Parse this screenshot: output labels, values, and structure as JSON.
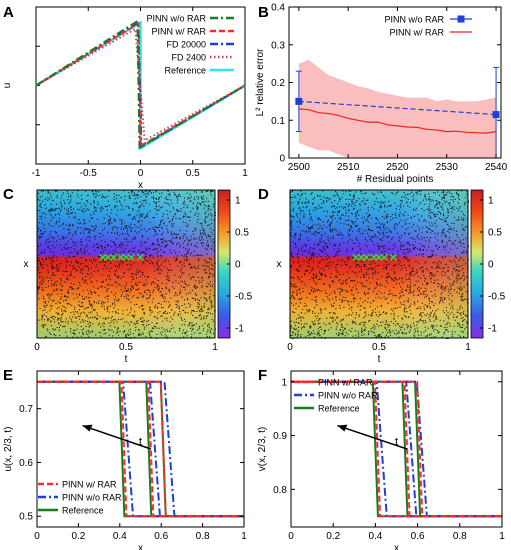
{
  "chart_data": [
    {
      "panel": "A",
      "type": "line",
      "xlabel": "x",
      "ylabel": "u",
      "xlim": [
        -1,
        1
      ],
      "ylim": [
        -1,
        1
      ],
      "xticks": [
        "-1",
        "-0.5",
        "0",
        "0.5",
        "1"
      ],
      "yticks": [],
      "legend_position": "top-right",
      "series": [
        {
          "name": "PINN w/o RAR",
          "color": "#1e7a1e",
          "style": "dashdot",
          "points": [
            [
              -1,
              0
            ],
            [
              -0.03,
              0.82
            ],
            [
              -0.01,
              -0.79
            ],
            [
              1,
              0
            ]
          ]
        },
        {
          "name": "PINN w/ RAR",
          "color": "#ff2a2a",
          "style": "dashed",
          "points": [
            [
              -1,
              0
            ],
            [
              -0.02,
              0.79
            ],
            [
              0.0,
              -0.77
            ],
            [
              1,
              0
            ]
          ]
        },
        {
          "name": "FD 20000",
          "color": "#1f3fd8",
          "style": "dashdot",
          "points": [
            [
              -1,
              0
            ],
            [
              -0.02,
              0.8
            ],
            [
              0.01,
              -0.78
            ],
            [
              1,
              0
            ]
          ]
        },
        {
          "name": "FD 2400",
          "color": "#b04a6a",
          "style": "dotted",
          "points": [
            [
              -1,
              0
            ],
            [
              -0.05,
              0.72
            ],
            [
              0.04,
              -0.7
            ],
            [
              1,
              0
            ]
          ]
        },
        {
          "name": "Reference",
          "color": "#2ee6e6",
          "style": "solid",
          "points": [
            [
              -1,
              0
            ],
            [
              0,
              0.8
            ],
            [
              0,
              -0.8
            ],
            [
              1,
              0
            ]
          ]
        }
      ]
    },
    {
      "panel": "B",
      "type": "line",
      "xlabel": "# Residual points",
      "ylabel": "L² relative error",
      "xlim": [
        2498,
        2541
      ],
      "ylim": [
        0,
        0.4
      ],
      "xticks": [
        "2500",
        "2510",
        "2520",
        "2530",
        "2540"
      ],
      "yticks": [
        "0",
        "0.1",
        "0.2",
        "0.3",
        "0.4"
      ],
      "legend_position": "top-right",
      "series": [
        {
          "name": "PINN w/o RAR",
          "color": "#1f3fd8",
          "style": "dashed-errorbar",
          "x": [
            2500,
            2540
          ],
          "y": [
            0.15,
            0.115
          ],
          "err_low": [
            0.07,
            0.0
          ],
          "err_high": [
            0.23,
            0.24
          ]
        },
        {
          "name": "PINN w/ RAR",
          "color": "#e8281e",
          "style": "solid-band",
          "x": [
            2500,
            2502,
            2504,
            2506,
            2508,
            2510,
            2512,
            2514,
            2516,
            2518,
            2520,
            2522,
            2524,
            2526,
            2528,
            2530,
            2532,
            2534,
            2536,
            2538,
            2540
          ],
          "y": [
            0.13,
            0.128,
            0.12,
            0.118,
            0.113,
            0.105,
            0.1,
            0.095,
            0.095,
            0.088,
            0.085,
            0.082,
            0.081,
            0.076,
            0.074,
            0.07,
            0.071,
            0.068,
            0.067,
            0.066,
            0.07
          ],
          "band_low": [
            0.04,
            0.03,
            0.02,
            0.02,
            0.01,
            0.0,
            0.0,
            0.0,
            0.0,
            0.0,
            0.0,
            0.0,
            0.0,
            0.0,
            0.0,
            0.0,
            0.0,
            0.0,
            0.0,
            0.0,
            0.0
          ],
          "band_high": [
            0.25,
            0.26,
            0.24,
            0.22,
            0.21,
            0.2,
            0.19,
            0.185,
            0.175,
            0.17,
            0.165,
            0.16,
            0.16,
            0.16,
            0.15,
            0.155,
            0.15,
            0.15,
            0.15,
            0.155,
            0.16
          ]
        }
      ]
    },
    {
      "panel": "C",
      "type": "heatmap",
      "xlabel": "t",
      "ylabel": "x",
      "xticks": [
        "0",
        "0.5",
        "1"
      ],
      "colorbar_ticks": [
        "1",
        "0.5",
        "0",
        "-0.5",
        "-1"
      ]
    },
    {
      "panel": "D",
      "type": "heatmap",
      "xlabel": "t",
      "ylabel": "x",
      "xticks": [
        "0",
        "0.5",
        "1"
      ],
      "colorbar_ticks": [
        "1",
        "0.5",
        "0",
        "-0.5",
        "-1"
      ]
    },
    {
      "panel": "E",
      "type": "line",
      "xlabel": "x",
      "ylabel": "u(x, 2/3, t)",
      "xlim": [
        0,
        1
      ],
      "ylim": [
        0.48,
        0.77
      ],
      "xticks": [
        "0",
        "0.2",
        "0.4",
        "0.6",
        "0.8",
        "1"
      ],
      "yticks": [
        "0.5",
        "0.6",
        "0.7"
      ],
      "ytick_values": [
        0.5,
        0.6,
        0.7
      ],
      "legend_position": "bottom-left",
      "arrow_label": "t",
      "series": [
        {
          "name": "PINN w/ RAR",
          "color": "#ff2a2a",
          "style": "dashed",
          "jumps": [
            0.42,
            0.55,
            0.61
          ]
        },
        {
          "name": "PINN w/o RAR",
          "color": "#1f3fd8",
          "style": "dashdot",
          "jumps": [
            0.44,
            0.57,
            0.64
          ]
        },
        {
          "name": "Reference",
          "color": "#1e7a1e",
          "style": "solid",
          "jumps": [
            0.41,
            0.54,
            0.61
          ]
        }
      ],
      "high": 0.75,
      "low": 0.5
    },
    {
      "panel": "F",
      "type": "line",
      "xlabel": "x",
      "ylabel": "v(x, 2/3, t)",
      "xlim": [
        0,
        1
      ],
      "ylim": [
        0.73,
        1.02
      ],
      "xticks": [
        "0",
        "0.2",
        "0.4",
        "0.6",
        "0.8",
        "1"
      ],
      "yticks": [
        "0.8",
        "0.9",
        "1"
      ],
      "ytick_values": [
        0.8,
        0.9,
        1.0
      ],
      "legend_position": "top-left",
      "arrow_label": "t",
      "series": [
        {
          "name": "PINN w/ RAR",
          "color": "#ff2a2a",
          "style": "dashed",
          "jumps": [
            0.41,
            0.55,
            0.61
          ]
        },
        {
          "name": "PINN w/o RAR",
          "color": "#1f3fd8",
          "style": "dashdot",
          "jumps": [
            0.43,
            0.57,
            0.62
          ]
        },
        {
          "name": "Reference",
          "color": "#1e7a1e",
          "style": "solid",
          "jumps": [
            0.4,
            0.54,
            0.6
          ]
        }
      ],
      "high": 1.0,
      "low": 0.75
    }
  ]
}
